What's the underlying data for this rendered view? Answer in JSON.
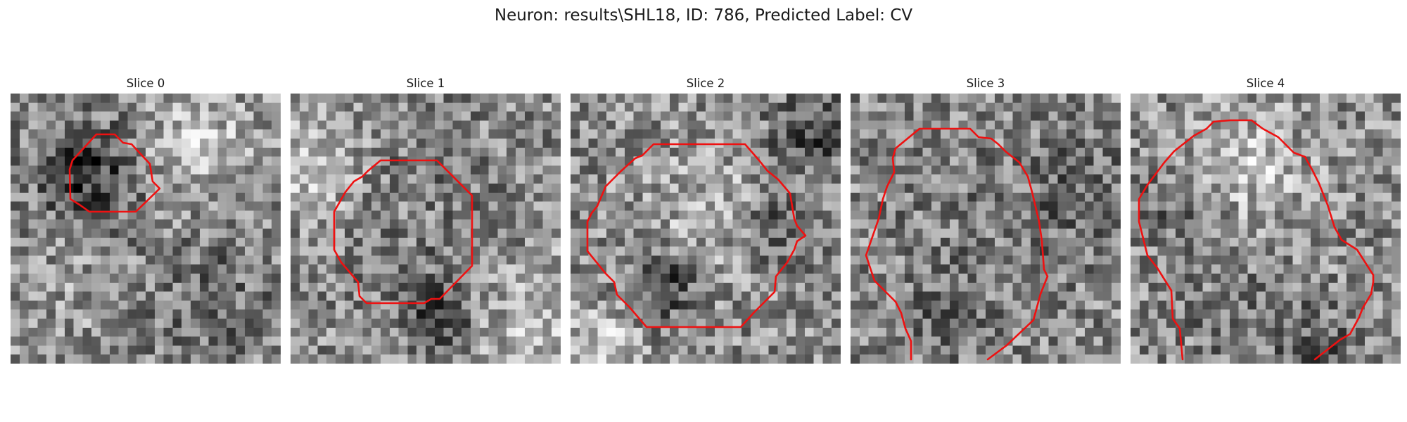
{
  "figure": {
    "suptitle": "Neuron: results\\SHL18, ID: 786, Predicted Label: CV"
  },
  "slices": [
    {
      "title": "Slice 0"
    },
    {
      "title": "Slice 1"
    },
    {
      "title": "Slice 2"
    },
    {
      "title": "Slice 3"
    },
    {
      "title": "Slice 4"
    }
  ],
  "colors": {
    "contour": "#ee1111",
    "colormap": "grayscale"
  }
}
